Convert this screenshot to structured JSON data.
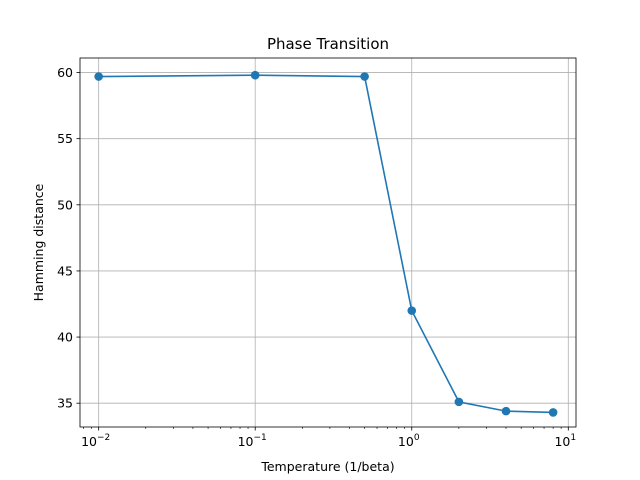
{
  "chart_data": {
    "type": "line",
    "title": "Phase Transition",
    "xlabel": "Temperature (1/beta)",
    "ylabel": "Hamming distance",
    "xscale": "log",
    "xlim": [
      0.0076,
      11.2
    ],
    "ylim": [
      33.2,
      61.1
    ],
    "grid": true,
    "series_color": "#1f77b4",
    "x_ticks": [
      0.01,
      0.1,
      1,
      10
    ],
    "x_tick_labels": [
      {
        "base": "10",
        "exp": "−2"
      },
      {
        "base": "10",
        "exp": "−1"
      },
      {
        "base": "10",
        "exp": "0"
      },
      {
        "base": "10",
        "exp": "1"
      }
    ],
    "y_ticks": [
      35,
      40,
      45,
      50,
      55,
      60
    ],
    "y_tick_labels": [
      "35",
      "40",
      "45",
      "50",
      "55",
      "60"
    ],
    "series": [
      {
        "x": [
          0.01,
          0.1,
          0.5,
          1,
          2,
          4,
          8
        ],
        "values": [
          59.7,
          59.8,
          59.7,
          42.0,
          35.1,
          34.4,
          34.3
        ]
      }
    ]
  }
}
